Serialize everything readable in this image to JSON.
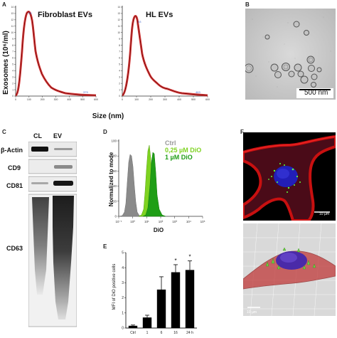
{
  "panels": {
    "A": "A",
    "B": "B",
    "C": "C",
    "D": "D",
    "E": "E",
    "F": "F"
  },
  "panel_a": {
    "ylabel": "Exosomes (10⁶/ml)",
    "xlabel": "Size (nm)",
    "left_title": "Fibroblast EVs",
    "right_title": "HL EVs",
    "ticks_left": [
      "0",
      "100",
      "200",
      "300",
      "400",
      "500",
      "600"
    ],
    "ticks_right": [
      "0",
      "100",
      "200",
      "300",
      "400",
      "500",
      "600"
    ],
    "y_ticks": [
      "0",
      "1",
      "2",
      "3",
      "4",
      "5",
      "6",
      "7",
      "8",
      "9",
      "10",
      "11",
      "12",
      "13",
      "14"
    ],
    "peak_left": "93",
    "peak_right": "93",
    "tail_left": "379",
    "tail_right": "463"
  },
  "panel_b": {
    "scalebar": "500 nm"
  },
  "panel_c": {
    "lanes": [
      "CL",
      "EV"
    ],
    "rows": [
      "β-Actin",
      "CD9",
      "CD81",
      "CD63"
    ]
  },
  "panel_d": {
    "ylabel": "Normalized to mode",
    "xlabel": "DiO",
    "legend": [
      "Ctrl",
      "0,25 µM DiO",
      "1 µM DiO"
    ],
    "y_ticks": [
      "0",
      "20",
      "40",
      "60",
      "80",
      "100"
    ],
    "x_ticks": [
      "10⁻¹",
      "10⁰",
      "10¹",
      "10²",
      "10³",
      "10⁴",
      "10⁵"
    ]
  },
  "panel_f": {
    "scale_top": "10 µm",
    "scale_bottom": "10 µm"
  },
  "colors": {
    "curve_red": "#d42020",
    "ctrl_gray": "#8a8a8a",
    "dio_light": "#7ed321",
    "dio_dark": "#1f9e16",
    "membrane_red": "#c81010",
    "nucleus_blue": "#2020c0"
  },
  "chart_data": {
    "type": "bar",
    "title": "",
    "ylabel": "MFI of DiO positive cells",
    "xlabel": "",
    "categories": [
      "Ctrl",
      "1",
      "6",
      "16",
      "24 h"
    ],
    "values": [
      0.15,
      0.7,
      2.55,
      3.7,
      3.85
    ],
    "errors": [
      0.05,
      0.15,
      0.85,
      0.5,
      0.6
    ],
    "significance": [
      "",
      "",
      "",
      "*",
      "*"
    ],
    "y_ticks": [
      "0",
      "1",
      "2",
      "3",
      "4",
      "5"
    ],
    "ylim": [
      0,
      5
    ]
  }
}
